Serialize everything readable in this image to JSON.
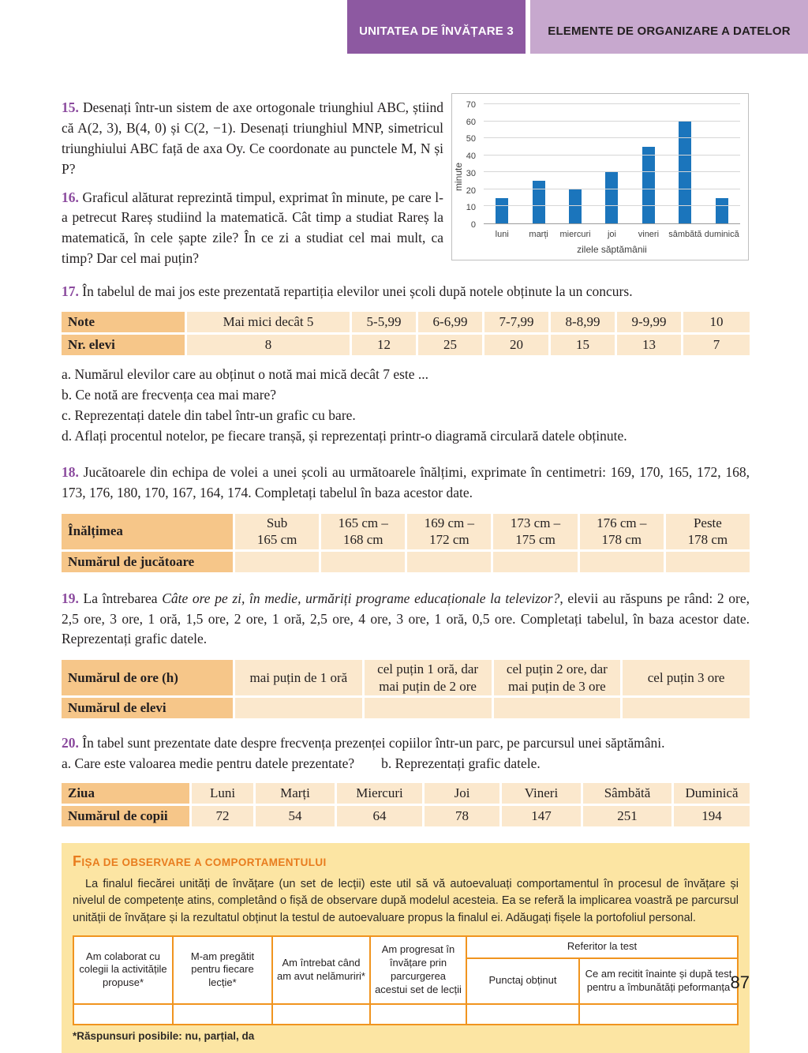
{
  "header": {
    "unit": "UNITATEA DE ÎNVĂȚARE 3",
    "section": "ELEMENTE DE ORGANIZARE A DATELOR"
  },
  "ex15": {
    "num": "15.",
    "text": "Desenați într-un sistem de axe ortogonale triunghiul ABC, știind că A(2, 3), B(4, 0) și C(2, −1). Desenați triunghiul MNP, simetricul triunghiului ABC față de axa Oy. Ce coordonate au punctele M, N și P?"
  },
  "ex16": {
    "num": "16.",
    "text": "Graficul alăturat reprezintă timpul, exprimat în minute, pe care l-a petrecut Rareș studiind la matematică. Cât timp a studiat Rareș la matematică, în cele șapte zile? În ce zi a studiat cel mai mult, ca timp? Dar cel mai puțin?"
  },
  "chart_data": {
    "type": "bar",
    "title": "",
    "categories": [
      "luni",
      "marți",
      "miercuri",
      "joi",
      "vineri",
      "sâmbătă",
      "duminică"
    ],
    "values": [
      15,
      25,
      20,
      30,
      45,
      60,
      15
    ],
    "xlabel": "zilele săptămânii",
    "ylabel": "minute",
    "ylim": [
      0,
      70
    ],
    "yticks": [
      0,
      10,
      20,
      30,
      40,
      50,
      60,
      70
    ],
    "grid": true,
    "legend": false,
    "bar_color": "#1b75bc"
  },
  "ex17": {
    "num": "17.",
    "text": "În tabelul de mai jos este prezentată repartiția elevilor unei școli după notele obținute la un concurs.",
    "table": {
      "row1_label": "Note",
      "row1_cells": [
        "Mai mici decât 5",
        "5-5,99",
        "6-6,99",
        "7-7,99",
        "8-8,99",
        "9-9,99",
        "10"
      ],
      "row2_label": "Nr. elevi",
      "row2_cells": [
        "8",
        "12",
        "25",
        "20",
        "15",
        "13",
        "7"
      ]
    },
    "items": [
      "a. Numărul elevilor care au obținut o notă mai mică decât 7 este ...",
      "b. Ce notă are frecvența cea mai mare?",
      "c. Reprezentați datele din tabel într-un grafic cu bare.",
      "d. Aflați procentul notelor, pe fiecare tranșă, și reprezentați printr-o diagramă circulară datele obținute."
    ]
  },
  "ex18": {
    "num": "18.",
    "text": "Jucătoarele din echipa de volei a unei școli au următoarele înălțimi, exprimate în centimetri: 169, 170, 165, 172, 168, 173, 176, 180, 170, 167, 164, 174. Completați tabelul în baza acestor date.",
    "table": {
      "row1_label": "Înălțimea",
      "row1_cells": [
        "Sub\n165 cm",
        "165 cm –\n168 cm",
        "169 cm –\n172 cm",
        "173 cm –\n175 cm",
        "176 cm –\n178 cm",
        "Peste\n178 cm"
      ],
      "row2_label": "Numărul de jucătoare"
    }
  },
  "ex19": {
    "num": "19.",
    "text_pre": "La întrebarea ",
    "text_italic": "Câte ore pe zi, în medie, urmăriți programe educaționale la televizor?",
    "text_post": ", elevii au răspuns pe rând: 2 ore, 2,5 ore, 3 ore, 1 oră, 1,5 ore, 2 ore, 1 oră, 2,5 ore, 4 ore, 3 ore, 1 oră, 0,5 ore. Completați tabelul, în baza acestor date. Reprezentați grafic datele.",
    "table": {
      "row1_label": "Numărul de ore (h)",
      "row1_cells": [
        "mai puțin de 1 oră",
        "cel puțin 1 oră, dar\nmai puțin de 2 ore",
        "cel puțin 2 ore, dar\nmai puțin de 3 ore",
        "cel puțin 3 ore"
      ],
      "row2_label": "Numărul de elevi"
    }
  },
  "ex20": {
    "num": "20.",
    "text": "În tabel sunt prezentate date despre frecvența prezenței copiilor într-un parc, pe parcursul unei săptămâni.",
    "item_a": "a. Care este valoarea medie pentru datele prezentate?",
    "item_b": "b. Reprezentați grafic datele.",
    "table": {
      "row1_label": "Ziua",
      "row1_cells": [
        "Luni",
        "Marți",
        "Miercuri",
        "Joi",
        "Vineri",
        "Sâmbătă",
        "Duminică"
      ],
      "row2_label": "Numărul de copii",
      "row2_cells": [
        "72",
        "54",
        "64",
        "78",
        "147",
        "251",
        "194"
      ]
    }
  },
  "obs": {
    "title": "FIȘA DE OBSERVARE A COMPORTAMENTULUI",
    "paragraph": "La finalul fiecărei unități de învățare (un set de lecții) este util să vă autoevaluați comportamentul în procesul de învățare și nivelul de competențe atins, completând o fișă de observare după modelul acesteia. Ea se referă la implicarea voastră pe parcursul unității de învățare și la rezultatul obținut la testul de autoevaluare propus la finalul ei. Adăugați fișele la portofoliul personal.",
    "table": {
      "col1": "Am colaborat cu colegii la activitățile propuse*",
      "col2": "M-am pregătit pentru fiecare lecție*",
      "col3": "Am întrebat când am avut nelămuriri*",
      "col4": "Am progresat în învățare prin parcurgerea acestui set de lecții",
      "group": "Referitor la test",
      "sub1": "Punctaj obținut",
      "sub2": "Ce am recitit înainte și după test pentru a îmbunătăți peformanța"
    },
    "footnote": "*Răspunsuri posibile: nu, parțial, da"
  },
  "page": {
    "number": "87"
  }
}
